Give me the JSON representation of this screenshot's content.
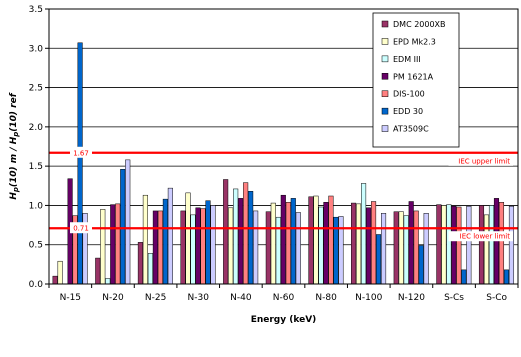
{
  "chart_data": {
    "type": "bar",
    "categories": [
      "N-15",
      "N-20",
      "N-25",
      "N-30",
      "N-40",
      "N-60",
      "N-80",
      "N-100",
      "N-120",
      "S-Cs",
      "S-Co"
    ],
    "series": [
      {
        "name": "DMC 2000XB",
        "color": "#993366",
        "values": [
          0.1,
          0.33,
          0.53,
          0.93,
          1.33,
          0.92,
          1.11,
          1.03,
          0.92,
          1.01,
          1.0
        ]
      },
      {
        "name": "EPD Mk2.3",
        "color": "#FFFFCC",
        "values": [
          0.29,
          0.95,
          1.13,
          1.16,
          0.97,
          1.03,
          1.12,
          1.02,
          0.92,
          1.0,
          0.88
        ]
      },
      {
        "name": "EDM III",
        "color": "#CCFFFF",
        "values": [
          0.0,
          0.07,
          0.39,
          0.88,
          1.21,
          0.85,
          0.98,
          1.28,
          0.87,
          1.01,
          1.0
        ]
      },
      {
        "name": "PM 1621A",
        "color": "#660066",
        "values": [
          1.34,
          1.01,
          0.93,
          0.97,
          1.09,
          1.13,
          1.04,
          0.97,
          1.05,
          0.99,
          1.09
        ]
      },
      {
        "name": "DIS-100",
        "color": "#FF8080",
        "values": [
          0.87,
          1.02,
          0.93,
          0.96,
          1.29,
          1.04,
          1.12,
          1.05,
          0.93,
          0.98,
          1.04
        ]
      },
      {
        "name": "EDD 30",
        "color": "#0066CC",
        "values": [
          3.07,
          1.46,
          1.08,
          1.06,
          1.18,
          1.09,
          0.85,
          0.63,
          0.49,
          0.18,
          0.18
        ]
      },
      {
        "name": "AT3509C",
        "color": "#CCCCFF",
        "values": [
          0.9,
          1.58,
          1.22,
          1.0,
          0.93,
          0.91,
          0.86,
          0.9,
          0.9,
          0.99,
          0.99
        ]
      }
    ],
    "xlabel": "Energy (keV)",
    "ylabel_parts": [
      {
        "text": "H",
        "style": "italic"
      },
      {
        "text": "p",
        "style": "subscript"
      },
      {
        "text": "(10) m / ",
        "style": "italic"
      },
      {
        "text": "H",
        "style": "italic"
      },
      {
        "text": "p",
        "style": "subscript"
      },
      {
        "text": "(10) ref",
        "style": "italic"
      }
    ],
    "ylim": [
      0,
      3.5
    ],
    "yticks": [
      "0.0",
      "0.5",
      "1.0",
      "1.5",
      "2.0",
      "2.5",
      "3.0",
      "3.5"
    ],
    "grid": true,
    "legend_position": "top-right",
    "reference_lines": [
      {
        "value": 1.67,
        "label": "1.67",
        "name": "IEC upper limit",
        "color": "#FF0000"
      },
      {
        "value": 0.71,
        "label": "0.71",
        "name": "IEC lower limit",
        "color": "#FF0000"
      }
    ]
  }
}
